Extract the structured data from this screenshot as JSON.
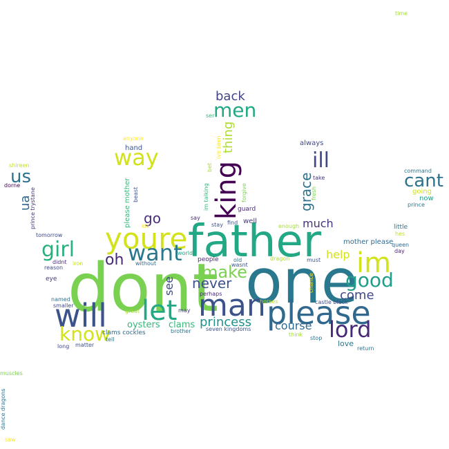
{
  "words": [
    {
      "text": "dont",
      "color": "#7ad151"
    },
    {
      "text": "one",
      "color": "#2a788e"
    },
    {
      "text": "father",
      "color": "#22a884"
    },
    {
      "text": "please",
      "color": "#31688e"
    },
    {
      "text": "man",
      "color": "#3b528b"
    },
    {
      "text": "will",
      "color": "#3b528b"
    },
    {
      "text": "youre",
      "color": "#d2e21b"
    },
    {
      "text": "king",
      "color": "#440154"
    },
    {
      "text": "im",
      "color": "#d2e21b"
    },
    {
      "text": "let",
      "color": "#22a884"
    },
    {
      "text": "lord",
      "color": "#482878"
    },
    {
      "text": "want",
      "color": "#2a788e"
    },
    {
      "text": "good",
      "color": "#1f9e89"
    },
    {
      "text": "girl",
      "color": "#2ab07f"
    },
    {
      "text": "way",
      "color": "#d2e21b"
    },
    {
      "text": "men",
      "color": "#22a884"
    },
    {
      "text": "know",
      "color": "#d2e21b"
    },
    {
      "text": "cant",
      "color": "#2c728e"
    },
    {
      "text": "ill",
      "color": "#3e4989"
    },
    {
      "text": "make",
      "color": "#7ad151"
    },
    {
      "text": "never",
      "color": "#3b528b"
    },
    {
      "text": "grace",
      "color": "#2c728e"
    },
    {
      "text": "princess",
      "color": "#21918c"
    },
    {
      "text": "us",
      "color": "#2c728e"
    },
    {
      "text": "thing",
      "color": "#addc30"
    },
    {
      "text": "oh",
      "color": "#482878"
    },
    {
      "text": "back",
      "color": "#414487"
    },
    {
      "text": "go",
      "color": "#472d7b"
    },
    {
      "text": "come",
      "color": "#3e4989"
    },
    {
      "text": "help",
      "color": "#d2e21b"
    },
    {
      "text": "ua",
      "color": "#31688e"
    },
    {
      "text": "course",
      "color": "#31688e"
    },
    {
      "text": "much",
      "color": "#46337e"
    },
    {
      "text": "see",
      "color": "#3e4989"
    },
    {
      "text": "clams",
      "color": "#35b779"
    },
    {
      "text": "oysters",
      "color": "#35b779"
    },
    {
      "text": "love",
      "color": "#2a788e"
    },
    {
      "text": "mother please",
      "color": "#31688e"
    },
    {
      "text": "always",
      "color": "#3e4989"
    },
    {
      "text": "hand",
      "color": "#3b528b"
    },
    {
      "text": "please mother",
      "color": "#35b779"
    },
    {
      "text": "clams cockles",
      "color": "#31688e"
    },
    {
      "text": "anyone",
      "color": "#fde725"
    },
    {
      "text": "now",
      "color": "#1f9e89"
    },
    {
      "text": "going",
      "color": "#d2e21b"
    },
    {
      "text": "command",
      "color": "#2c728e"
    },
    {
      "text": "prince",
      "color": "#2c728e"
    },
    {
      "text": "little",
      "color": "#2c728e"
    },
    {
      "text": "hes",
      "color": "#bddf26"
    },
    {
      "text": "queen",
      "color": "#31688e"
    },
    {
      "text": "day",
      "color": "#481f70"
    },
    {
      "text": "castle black",
      "color": "#3e4989"
    },
    {
      "text": "take",
      "color": "#46337e"
    },
    {
      "text": "fresh",
      "color": "#7ad151"
    },
    {
      "text": "guard",
      "color": "#482878"
    },
    {
      "text": "find",
      "color": "#3b528b"
    },
    {
      "text": "well",
      "color": "#453781"
    },
    {
      "text": "enough",
      "color": "#a5db36"
    },
    {
      "text": "stay",
      "color": "#3b528b"
    },
    {
      "text": "say",
      "color": "#482878"
    },
    {
      "text": "forgive",
      "color": "#7ad151"
    },
    {
      "text": "ive seen",
      "color": "#fde725"
    },
    {
      "text": "bet",
      "color": "#a5db36"
    },
    {
      "text": "im talking",
      "color": "#35b779"
    },
    {
      "text": "ser",
      "color": "#35b779"
    },
    {
      "text": "beast",
      "color": "#3b528b"
    },
    {
      "text": "kill",
      "color": "#fde725"
    },
    {
      "text": "dorne",
      "color": "#440154"
    },
    {
      "text": "shireen",
      "color": "#bddf26"
    },
    {
      "text": "prince trystane",
      "color": "#46337e"
    },
    {
      "text": "tomorrow",
      "color": "#3e4989"
    },
    {
      "text": "reason",
      "color": "#3e4989"
    },
    {
      "text": "iron",
      "color": "#bddf26"
    },
    {
      "text": "didnt",
      "color": "#472d7b"
    },
    {
      "text": "without",
      "color": "#31688e"
    },
    {
      "text": "eye",
      "color": "#453781"
    },
    {
      "text": "world",
      "color": "#20a486"
    },
    {
      "text": "people",
      "color": "#482878"
    },
    {
      "text": "old",
      "color": "#2c728e"
    },
    {
      "text": "wasnt",
      "color": "#3b528b"
    },
    {
      "text": "dragon",
      "color": "#addc30"
    },
    {
      "text": "must",
      "color": "#3b528b"
    },
    {
      "text": "chance",
      "color": "#fde725"
    },
    {
      "text": "named",
      "color": "#2c728e"
    },
    {
      "text": "smaller",
      "color": "#3e4989"
    },
    {
      "text": "great",
      "color": "#a5db36"
    },
    {
      "text": "may",
      "color": "#453781"
    },
    {
      "text": "perhaps",
      "color": "#482878"
    },
    {
      "text": "horses",
      "color": "#bddf26"
    },
    {
      "text": "tell",
      "color": "#2c728e"
    },
    {
      "text": "brother",
      "color": "#2c728e"
    },
    {
      "text": "seven kingdoms",
      "color": "#3b528b"
    },
    {
      "text": "think",
      "color": "#a5db36"
    },
    {
      "text": "stop",
      "color": "#2c728e"
    },
    {
      "text": "long",
      "color": "#3e4989"
    },
    {
      "text": "matter",
      "color": "#3b528b"
    },
    {
      "text": "return",
      "color": "#2c728e"
    },
    {
      "text": "muscles",
      "color": "#7ad151"
    },
    {
      "text": "dance dragons",
      "color": "#2c728e"
    },
    {
      "text": "saw",
      "color": "#fde725"
    },
    {
      "text": "time",
      "color": "#a5db36"
    }
  ]
}
